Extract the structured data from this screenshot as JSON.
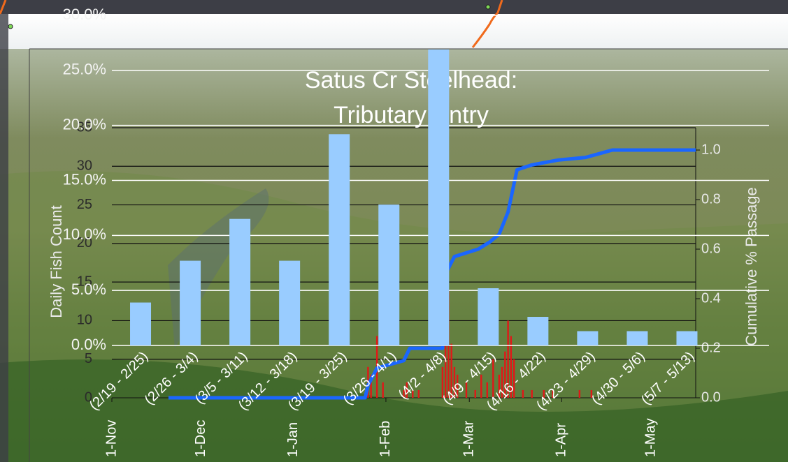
{
  "chart_data": [
    {
      "type": "bar",
      "categories": [
        "(2/19 - 2/25)",
        "(2/26 - 3/4)",
        "(3/5 - 3/11)",
        "(3/12 - 3/18)",
        "(3/19 - 3/25)",
        "(3/26 - 4/1)",
        "(4/2 - 4/8)",
        "(4/9 - 4/15)",
        "(4/16 - 4/22)",
        "(4/23 - 4/29)",
        "(4/30 - 5/6)",
        "(5/7 - 5/13)"
      ],
      "values": [
        3.9,
        7.7,
        11.5,
        7.7,
        19.2,
        12.8,
        26.9,
        5.2,
        2.6,
        1.3,
        1.3,
        1.3
      ],
      "color": "#99ccff",
      "ylim": [
        0,
        30
      ],
      "yticks": [
        {
          "value": 0,
          "label": "0.0%"
        },
        {
          "value": 5,
          "label": "5.0%"
        },
        {
          "value": 10,
          "label": "10.0%"
        },
        {
          "value": 15,
          "label": "15.0%"
        },
        {
          "value": 20,
          "label": "20.0%"
        },
        {
          "value": 25,
          "label": "25.0%"
        },
        {
          "value": 30,
          "label": "30.0%"
        }
      ],
      "grid": true
    },
    {
      "type": "combo",
      "title": "Satus Cr Steelhead: Tributary Entry",
      "y_label": "Daily Fish Count",
      "y2_label": "Cumulative % Passage",
      "xlim": [
        0,
        196
      ],
      "xticks": [
        {
          "value": 0,
          "label": "1-Nov"
        },
        {
          "value": 30,
          "label": "1-Dec"
        },
        {
          "value": 61,
          "label": "1-Jan"
        },
        {
          "value": 92,
          "label": "1-Feb"
        },
        {
          "value": 120,
          "label": "1-Mar"
        },
        {
          "value": 151,
          "label": "1-Apr"
        },
        {
          "value": 181,
          "label": "1-May"
        }
      ],
      "ylim": [
        0,
        35
      ],
      "yticks": [
        0,
        5,
        10,
        15,
        20,
        25,
        30,
        35
      ],
      "y2lim": [
        0,
        1
      ],
      "y2ticks": [
        {
          "value": 0,
          "label": "0.0"
        },
        {
          "value": 0.2,
          "label": "0.2"
        },
        {
          "value": 0.4,
          "label": "0.4"
        },
        {
          "value": 0.6,
          "label": "0.6"
        },
        {
          "value": 0.8,
          "label": "0.8"
        },
        {
          "value": 1,
          "label": "1.0"
        }
      ],
      "grid": true,
      "series": [
        {
          "type": "bar",
          "color": "#e01818",
          "x": [
            86,
            87,
            89,
            91,
            98,
            99,
            101,
            103,
            111,
            112,
            113,
            114,
            115,
            116,
            119,
            122,
            124,
            126,
            128,
            130,
            131,
            132,
            133,
            134,
            135,
            138,
            141,
            145,
            148,
            157,
            161
          ],
          "values": [
            4,
            3,
            8,
            2,
            1,
            2,
            1,
            1,
            4,
            31,
            14,
            7,
            4,
            3,
            2,
            1,
            3,
            2,
            5,
            3,
            4,
            6,
            10,
            8,
            5,
            1,
            1,
            1,
            1,
            1,
            1
          ]
        },
        {
          "type": "line",
          "axis": "y2",
          "color": "#1a66ff",
          "x": [
            19,
            85,
            86,
            89,
            98,
            100,
            111,
            112,
            115,
            123,
            127,
            130,
            133,
            136,
            141,
            150,
            159,
            165,
            168,
            196
          ],
          "values": [
            0,
            0,
            0.05,
            0.12,
            0.15,
            0.2,
            0.2,
            0.5,
            0.57,
            0.6,
            0.63,
            0.66,
            0.75,
            0.92,
            0.94,
            0.96,
            0.97,
            0.99,
            1,
            1
          ]
        }
      ]
    }
  ]
}
